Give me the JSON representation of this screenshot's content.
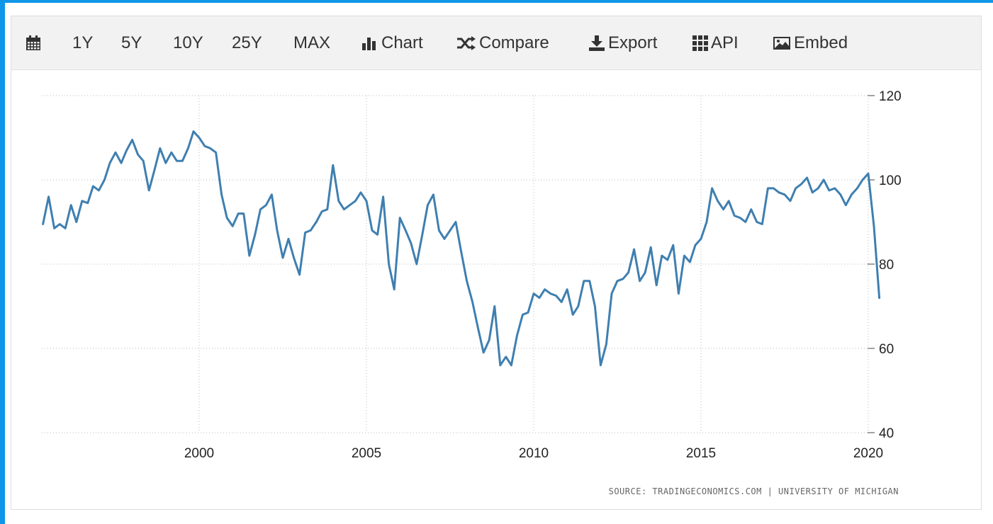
{
  "toolbar": {
    "calendar_icon": "calendar-icon",
    "ranges": [
      "1Y",
      "5Y",
      "10Y",
      "25Y",
      "MAX"
    ],
    "chart_label": "Chart",
    "compare_label": "Compare",
    "export_label": "Export",
    "api_label": "API",
    "embed_label": "Embed"
  },
  "source_text": "SOURCE: TRADINGECONOMICS.COM | UNIVERSITY OF MICHIGAN",
  "colors": {
    "line": "#3f7fb0",
    "toolbar_bg": "#f2f2f2",
    "frame": "#0f96e8"
  },
  "chart_data": {
    "type": "line",
    "x_ticks": [
      "2000",
      "2005",
      "2010",
      "2015",
      "2020"
    ],
    "y_ticks": [
      "40",
      "60",
      "80",
      "100",
      "120"
    ],
    "ylim": [
      40,
      120
    ],
    "xlim": [
      1995.33,
      2020.33
    ],
    "grid": true,
    "y_axis_position": "right",
    "series": [
      {
        "x": [
          1995.33,
          1995.5,
          1995.67,
          1995.83,
          1996.0,
          1996.17,
          1996.33,
          1996.5,
          1996.67,
          1996.83,
          1997.0,
          1997.17,
          1997.33,
          1997.5,
          1997.67,
          1997.83,
          1998.0,
          1998.17,
          1998.33,
          1998.5,
          1998.67,
          1998.83,
          1999.0,
          1999.17,
          1999.33,
          1999.5,
          1999.67,
          1999.83,
          2000.0,
          2000.17,
          2000.33,
          2000.5,
          2000.67,
          2000.83,
          2001.0,
          2001.17,
          2001.33,
          2001.5,
          2001.67,
          2001.83,
          2002.0,
          2002.17,
          2002.33,
          2002.5,
          2002.67,
          2002.83,
          2003.0,
          2003.17,
          2003.33,
          2003.5,
          2003.67,
          2003.83,
          2004.0,
          2004.17,
          2004.33,
          2004.5,
          2004.67,
          2004.83,
          2005.0,
          2005.17,
          2005.33,
          2005.5,
          2005.67,
          2005.83,
          2006.0,
          2006.17,
          2006.33,
          2006.5,
          2006.67,
          2006.83,
          2007.0,
          2007.17,
          2007.33,
          2007.5,
          2007.67,
          2007.83,
          2008.0,
          2008.17,
          2008.33,
          2008.5,
          2008.67,
          2008.83,
          2009.0,
          2009.17,
          2009.33,
          2009.5,
          2009.67,
          2009.83,
          2010.0,
          2010.17,
          2010.33,
          2010.5,
          2010.67,
          2010.83,
          2011.0,
          2011.17,
          2011.33,
          2011.5,
          2011.67,
          2011.83,
          2012.0,
          2012.17,
          2012.33,
          2012.5,
          2012.67,
          2012.83,
          2013.0,
          2013.17,
          2013.33,
          2013.5,
          2013.67,
          2013.83,
          2014.0,
          2014.17,
          2014.33,
          2014.5,
          2014.67,
          2014.83,
          2015.0,
          2015.17,
          2015.33,
          2015.5,
          2015.67,
          2015.83,
          2016.0,
          2016.17,
          2016.33,
          2016.5,
          2016.67,
          2016.83,
          2017.0,
          2017.17,
          2017.33,
          2017.5,
          2017.67,
          2017.83,
          2018.0,
          2018.17,
          2018.33,
          2018.5,
          2018.67,
          2018.83,
          2019.0,
          2019.17,
          2019.33,
          2019.5,
          2019.67,
          2019.83,
          2020.0,
          2020.17,
          2020.33
        ],
        "values": [
          89.5,
          96.0,
          88.5,
          89.5,
          88.5,
          94.0,
          90.0,
          95.0,
          94.5,
          98.5,
          97.5,
          100.0,
          104.0,
          106.5,
          104.0,
          107.0,
          109.5,
          106.0,
          104.5,
          97.5,
          102.5,
          107.5,
          104.0,
          106.5,
          104.5,
          104.5,
          107.5,
          111.5,
          110.0,
          108.0,
          107.5,
          106.5,
          96.5,
          91.0,
          89.0,
          92.0,
          92.0,
          82.0,
          87.0,
          93.0,
          94.0,
          96.5,
          88.0,
          81.5,
          86.0,
          81.5,
          77.5,
          87.5,
          88.0,
          90.0,
          92.5,
          93.0,
          103.5,
          95.0,
          93.0,
          94.0,
          95.0,
          97.0,
          95.0,
          88.0,
          87.0,
          96.0,
          80.0,
          74.0,
          91.0,
          88.0,
          85.0,
          80.0,
          87.0,
          94.0,
          96.5,
          88.0,
          86.0,
          88.0,
          90.0,
          83.0,
          76.0,
          71.0,
          65.0,
          59.0,
          62.0,
          70.0,
          56.0,
          58.0,
          56.0,
          63.0,
          68.0,
          68.5,
          73.0,
          72.0,
          74.0,
          73.0,
          72.5,
          71.0,
          74.0,
          68.0,
          70.0,
          76.0,
          76.0,
          70.0,
          56.0,
          61.0,
          73.0,
          76.0,
          76.5,
          78.0,
          83.5,
          76.0,
          78.0,
          84.0,
          75.0,
          82.0,
          81.0,
          84.5,
          73.0,
          82.0,
          80.5,
          84.5,
          86.0,
          90.0,
          98.0,
          95.0,
          93.0,
          95.0,
          91.5,
          91.0,
          90.0,
          93.0,
          90.0,
          89.5,
          98.0,
          98.0,
          97.0,
          96.5,
          95.0,
          98.0,
          99.0,
          100.5,
          97.0,
          98.0,
          100.0,
          97.5,
          98.0,
          96.5,
          94.0,
          96.5,
          98.0,
          100.0,
          101.5,
          89.0,
          72.0
        ]
      }
    ]
  }
}
